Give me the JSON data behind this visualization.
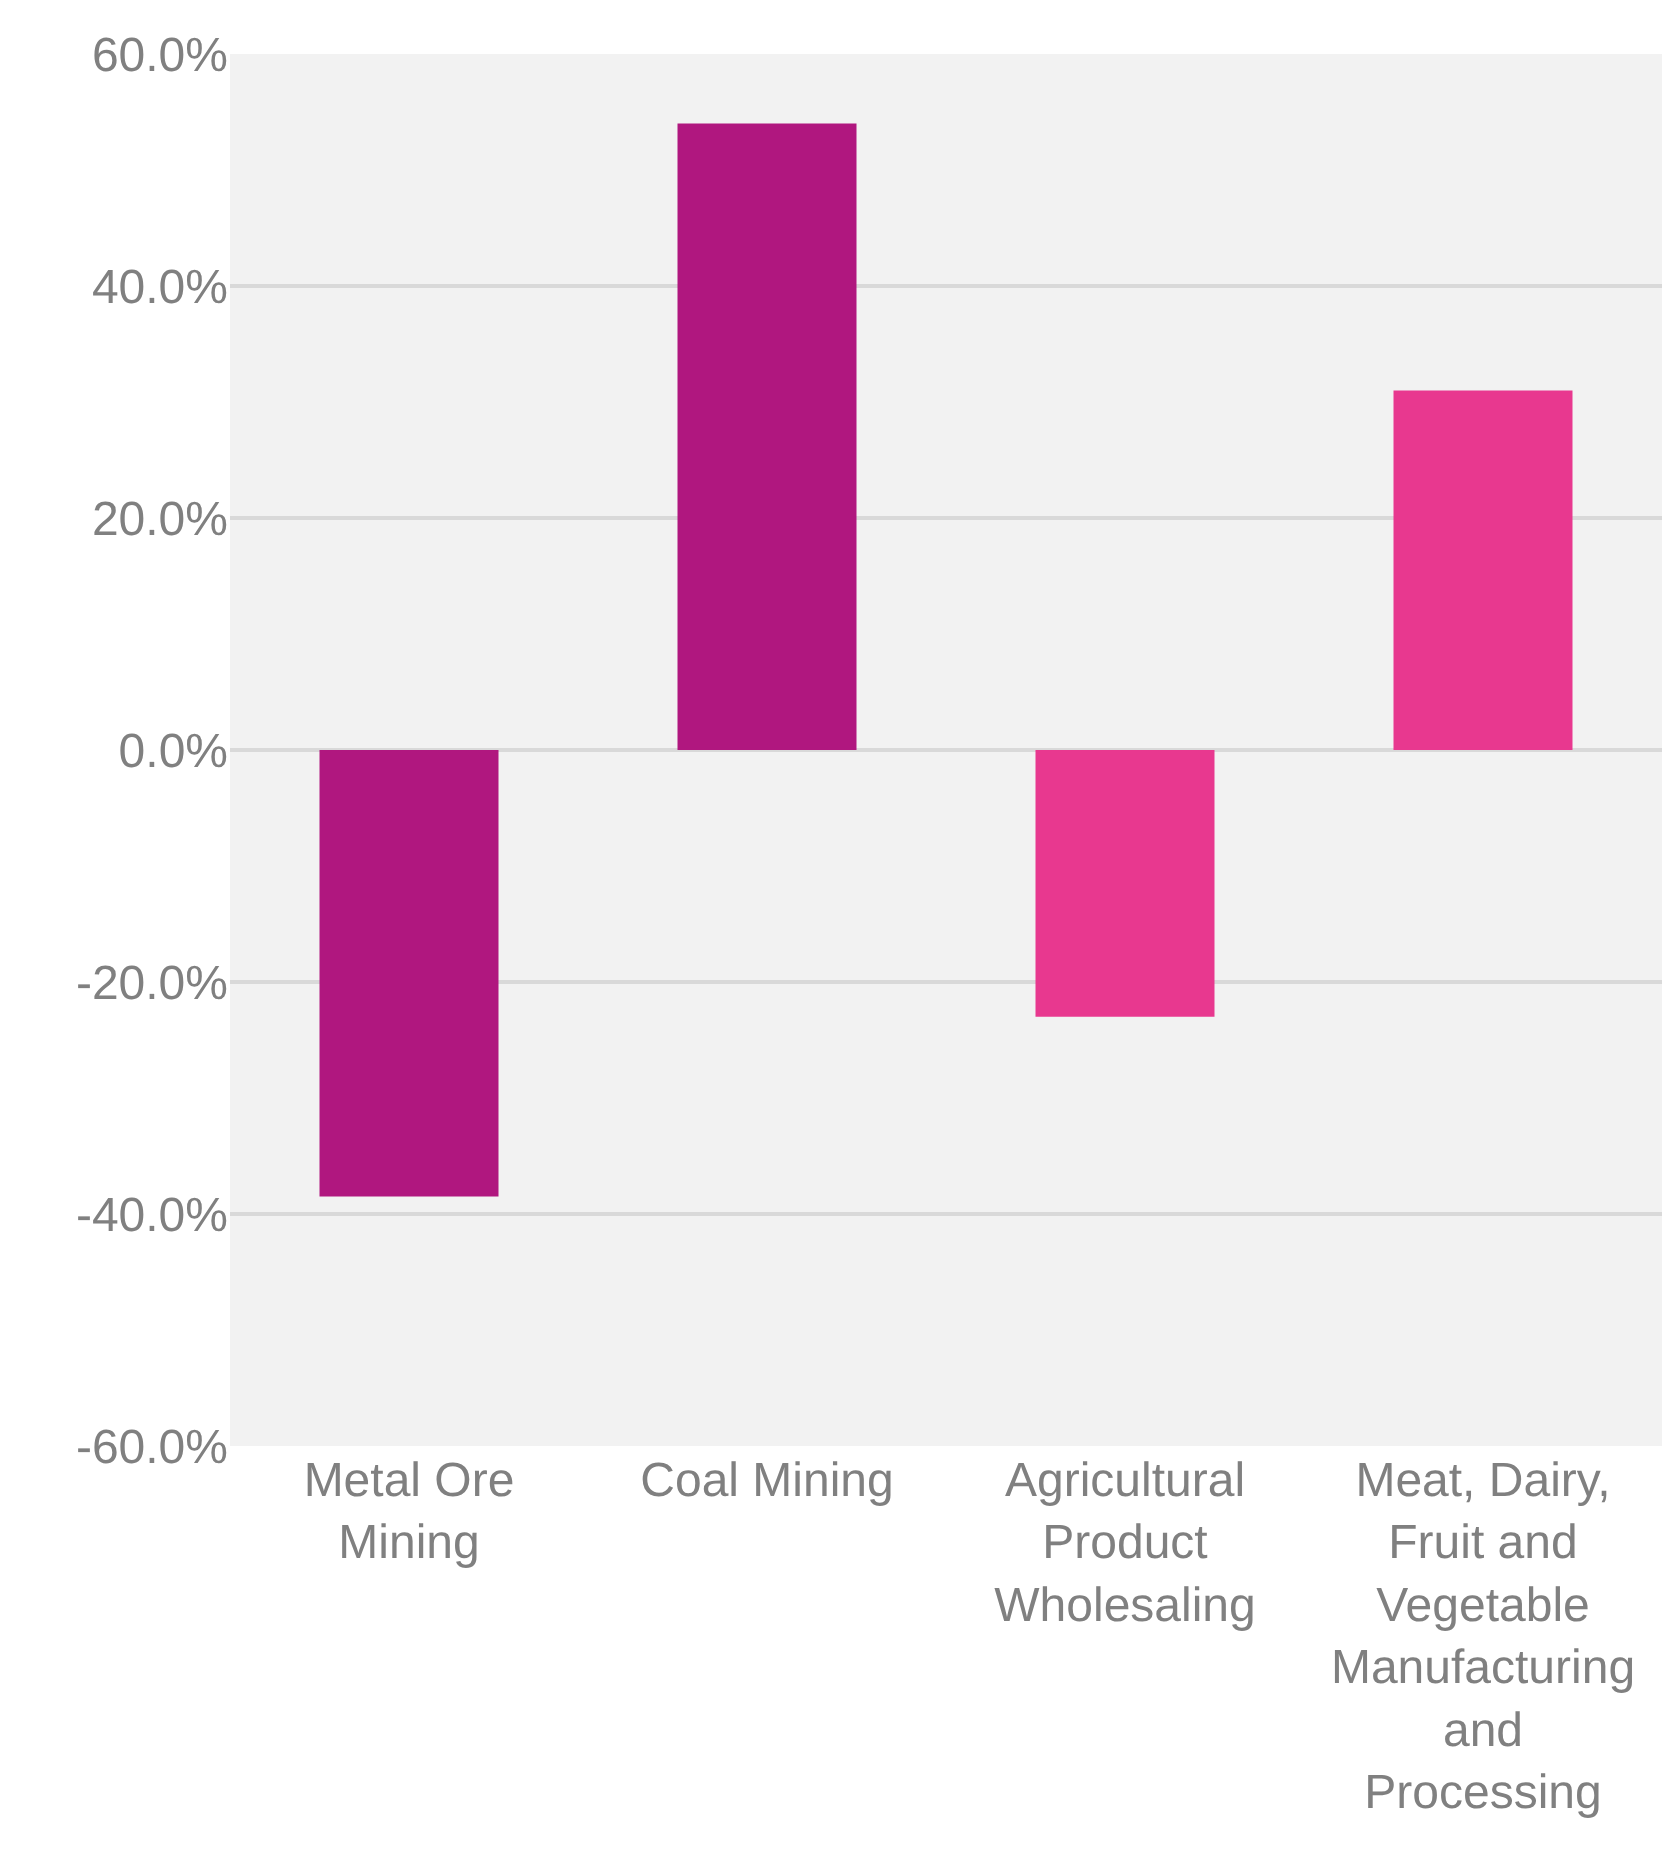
{
  "chart_data": {
    "type": "bar",
    "categories": [
      "Metal Ore Mining",
      "Coal Mining",
      "Agricultural Product Wholesaling",
      "Meat, Dairy, Fruit and Vegetable Manufacturing and Processing"
    ],
    "values": [
      -38.5,
      54.0,
      -23.0,
      31.0
    ],
    "colors": [
      "#b0177f",
      "#b0177f",
      "#e8388f",
      "#e8388f"
    ],
    "ylim": [
      -60,
      60
    ],
    "yticks": [
      {
        "value": -60,
        "label": "-60.0%"
      },
      {
        "value": -40,
        "label": "-40.0%"
      },
      {
        "value": -20,
        "label": "-20.0%"
      },
      {
        "value": 0,
        "label": "0.0%"
      },
      {
        "value": 20,
        "label": "20.0%"
      },
      {
        "value": 40,
        "label": "40.0%"
      },
      {
        "value": 60,
        "label": "60.0%"
      }
    ],
    "grid": "y"
  }
}
